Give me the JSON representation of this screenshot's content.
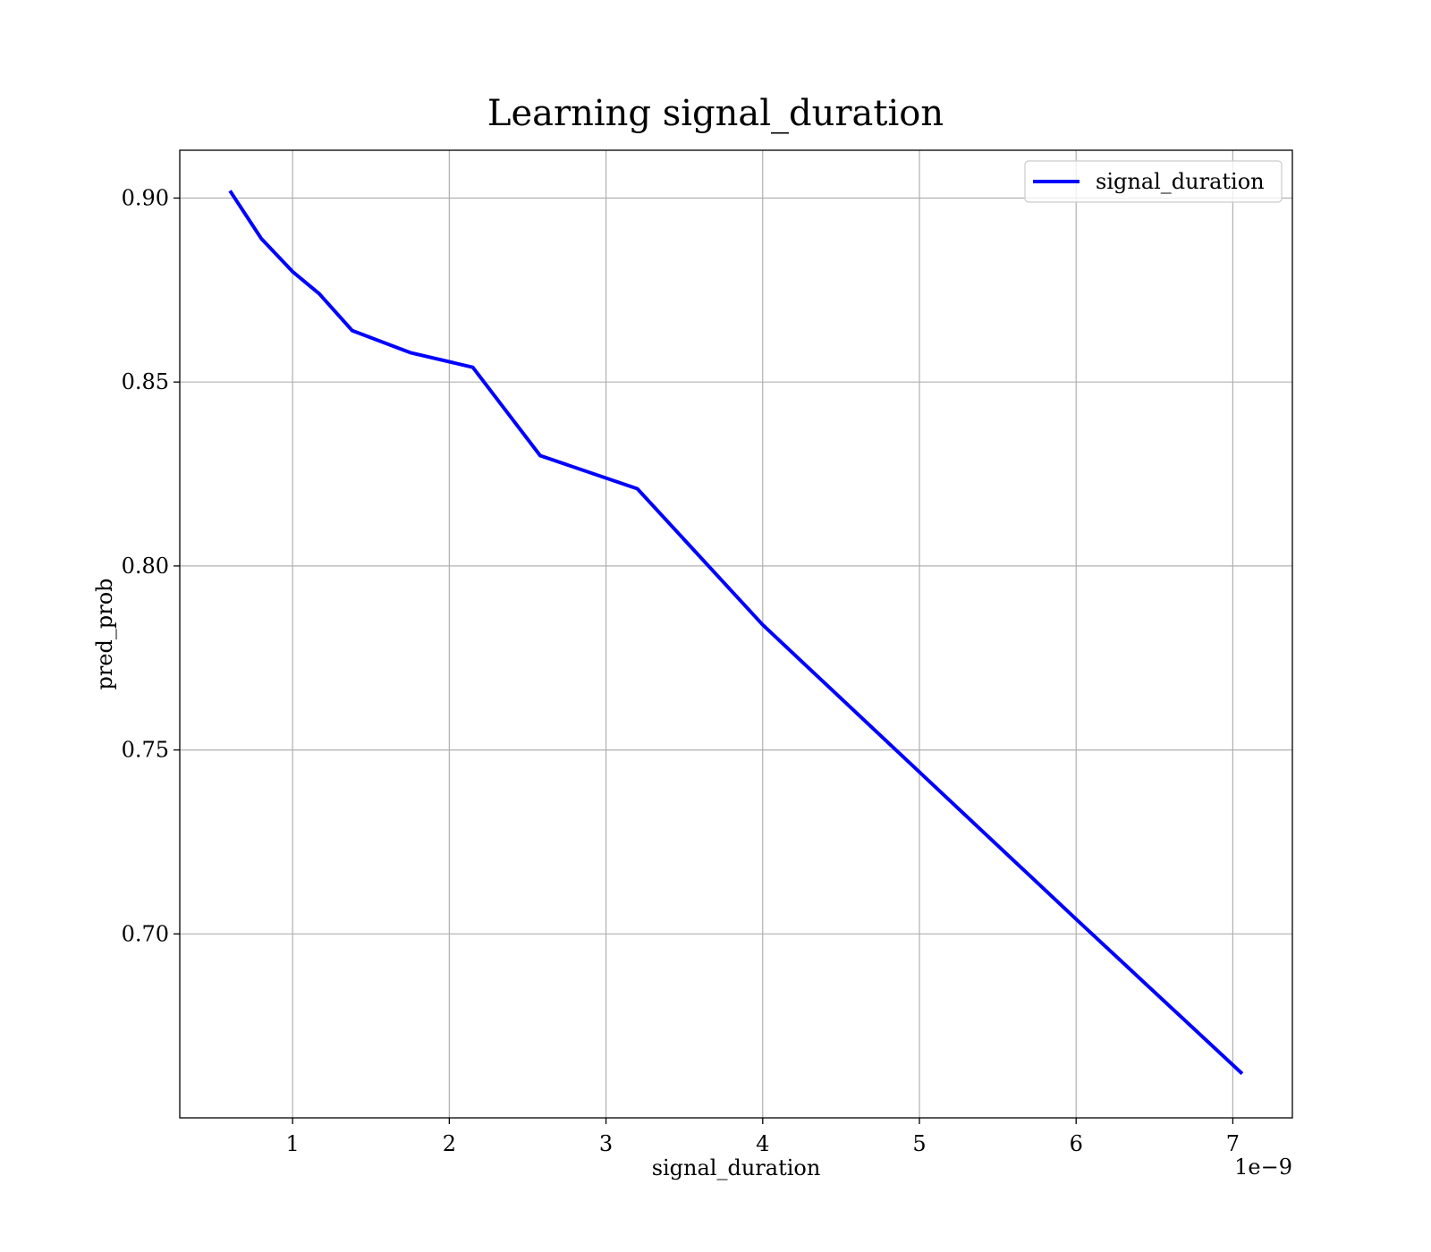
{
  "chart_data": {
    "type": "line",
    "title": "Learning signal_duration",
    "xlabel": "signal_duration",
    "ylabel": "pred_prob",
    "x_offset_text": "1e−9",
    "x_scale": 1e-09,
    "xlim": [
      0.28,
      7.38
    ],
    "ylim": [
      0.65,
      0.913
    ],
    "xticks": [
      1,
      2,
      3,
      4,
      5,
      6,
      7
    ],
    "yticks": [
      0.7,
      0.75,
      0.8,
      0.85,
      0.9
    ],
    "ytick_labels": [
      "0.70",
      "0.75",
      "0.80",
      "0.85",
      "0.90"
    ],
    "xtick_labels": [
      "1",
      "2",
      "3",
      "4",
      "5",
      "6",
      "7"
    ],
    "grid": true,
    "legend_position": "top-right",
    "series": [
      {
        "name": "signal_duration",
        "color": "#0000ff",
        "x": [
          0.6,
          0.8,
          1.0,
          1.17,
          1.38,
          1.75,
          2.15,
          2.58,
          3.2,
          4.0,
          5.0,
          6.0,
          7.06
        ],
        "y": [
          0.902,
          0.889,
          0.88,
          0.874,
          0.864,
          0.858,
          0.854,
          0.83,
          0.821,
          0.784,
          0.744,
          0.704,
          0.662
        ]
      }
    ]
  }
}
